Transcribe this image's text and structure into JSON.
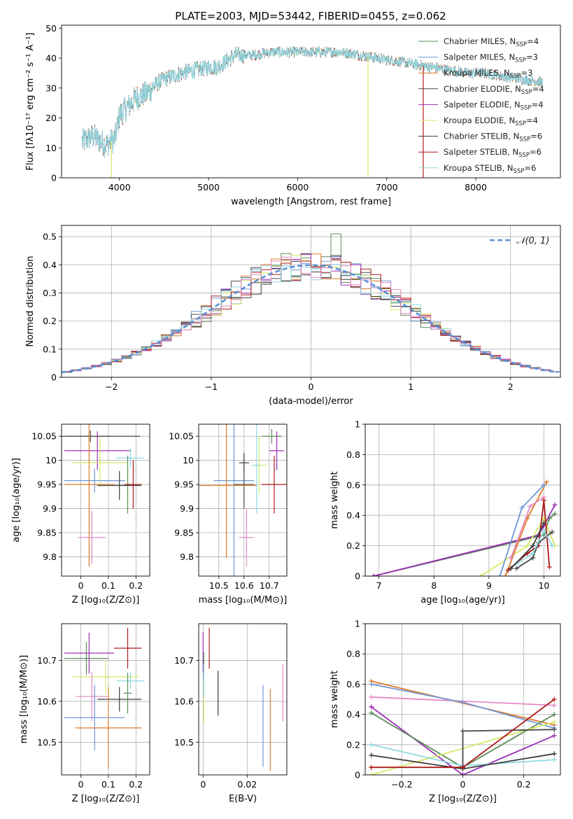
{
  "colors": {
    "palette": [
      "#5b8c5a",
      "#6f97d8",
      "#e07b28",
      "#4a4a4a",
      "#9b30b5",
      "#d4ea6a",
      "#3c3c3c",
      "#b01a1a",
      "#8fd8df",
      "#e58bc4"
    ],
    "gaussian": "#5b8fd8",
    "grid": "#b0b0b0"
  },
  "chart_data": [
    {
      "id": "spectrum",
      "type": "line",
      "title": "PLATE=2003, MJD=53442, FIBERID=0455, z=0.062",
      "xlabel": "wavelength [Angstrom, rest frame]",
      "ylabel": "Flux [fλ10⁻¹⁷ erg cm⁻² s⁻¹ A⁻¹]",
      "xlim": [
        3350,
        8950
      ],
      "ylim": [
        0,
        51
      ],
      "xticks": [
        4000,
        5000,
        6000,
        7000,
        8000
      ],
      "yticks": [
        0,
        10,
        20,
        30,
        40,
        50
      ],
      "grid": false,
      "legend": "top-right",
      "continuum": [
        [
          3580,
          12
        ],
        [
          3700,
          14
        ],
        [
          3850,
          11
        ],
        [
          3950,
          13
        ],
        [
          4000,
          21
        ],
        [
          4100,
          24
        ],
        [
          4200,
          27
        ],
        [
          4300,
          28
        ],
        [
          4400,
          31
        ],
        [
          4500,
          33
        ],
        [
          4700,
          35
        ],
        [
          4850,
          36
        ],
        [
          5000,
          37
        ],
        [
          5100,
          37
        ],
        [
          5200,
          39
        ],
        [
          5300,
          41
        ],
        [
          5500,
          41
        ],
        [
          5700,
          42
        ],
        [
          5900,
          42
        ],
        [
          6100,
          42
        ],
        [
          6300,
          42
        ],
        [
          6500,
          42
        ],
        [
          6700,
          41
        ],
        [
          6900,
          40
        ],
        [
          7100,
          39
        ],
        [
          7300,
          38
        ],
        [
          7500,
          37
        ],
        [
          7700,
          36
        ],
        [
          7900,
          35
        ],
        [
          8100,
          35
        ],
        [
          8300,
          34
        ],
        [
          8500,
          33
        ],
        [
          8750,
          32
        ]
      ],
      "dropouts": [
        [
          3910,
          5
        ],
        [
          6790,
          3
        ],
        [
          7410,
          7
        ]
      ],
      "series": [
        {
          "name": "Chabrier MILES, N_SSP=4"
        },
        {
          "name": "Salpeter MILES, N_SSP=3"
        },
        {
          "name": "Kroupa MILES, N_SSP=3"
        },
        {
          "name": "Chabrier ELODIE, N_SSP=4"
        },
        {
          "name": "Salpeter ELODIE, N_SSP=4"
        },
        {
          "name": "Kroupa ELODIE, N_SSP=4"
        },
        {
          "name": "Chabrier STELIB, N_SSP=6"
        },
        {
          "name": "Salpeter STELIB, N_SSP=6"
        },
        {
          "name": "Kroupa STELIB, N_SSP=6"
        }
      ],
      "legend_entries": [
        {
          "model": "Chabrier MILES, N",
          "sub": "SSP",
          "val": "=4"
        },
        {
          "model": "Salpeter MILES, N",
          "sub": "SSP",
          "val": "=3"
        },
        {
          "model": "Kroupa MILES, N",
          "sub": "SSP",
          "val": "=3"
        },
        {
          "model": "Chabrier ELODIE, N",
          "sub": "SSP",
          "val": "=4"
        },
        {
          "model": "Salpeter ELODIE, N",
          "sub": "SSP",
          "val": "=4"
        },
        {
          "model": "Kroupa ELODIE, N",
          "sub": "SSP",
          "val": "=4"
        },
        {
          "model": "Chabrier STELIB, N",
          "sub": "SSP",
          "val": "=6"
        },
        {
          "model": "Salpeter STELIB, N",
          "sub": "SSP",
          "val": "=6"
        },
        {
          "model": "Kroupa STELIB, N",
          "sub": "SSP",
          "val": "=6"
        }
      ]
    },
    {
      "id": "residuals",
      "type": "histogram",
      "xlabel": "(data-model)/error",
      "ylabel": "Normed distribution",
      "xlim": [
        -2.5,
        2.5
      ],
      "ylim": [
        0,
        0.54
      ],
      "xticks": [
        -2,
        -1,
        0,
        1,
        2
      ],
      "yticks": [
        0,
        0.1,
        0.2,
        0.3,
        0.4,
        0.5
      ],
      "bin_width": 0.1,
      "grid": true,
      "legend": "top-right",
      "reference": {
        "label": "𝒩(0, 1)",
        "mean": 0,
        "sigma": 1
      }
    },
    {
      "id": "age-vs-Z",
      "type": "errorbar",
      "xlabel": "Z [log₁₀(Z/Z⊙)]",
      "ylabel": "age  [log₁₀(age/yr)]",
      "xlim": [
        -0.07,
        0.25
      ],
      "ylim": [
        9.76,
        10.075
      ],
      "xticks": [
        0.0,
        0.1,
        0.2
      ],
      "yticks": [
        9.8,
        9.85,
        9.9,
        9.95,
        10.0,
        10.05
      ],
      "grid": true,
      "points": [
        {
          "x": 0.03,
          "xerr": 0.08,
          "y": 10.05,
          "yerr": 0.01,
          "c": 0
        },
        {
          "x": 0.035,
          "xerr": 0.18,
          "y": 10.05,
          "yerr": 0.012,
          "c": 3
        },
        {
          "x": 0.06,
          "xerr": 0.12,
          "y": 10.02,
          "yerr": 0.04,
          "c": 4
        },
        {
          "x": 0.07,
          "xerr": 0.1,
          "y": 9.995,
          "yerr": 0.05,
          "c": 5
        },
        {
          "x": 0.18,
          "xerr": 0.05,
          "y": 10.005,
          "yerr": 0.02,
          "c": 8
        },
        {
          "x": 0.17,
          "xerr": 0.015,
          "y": 9.95,
          "yerr": 0.06,
          "c": 0
        },
        {
          "x": 0.05,
          "xerr": 0.11,
          "y": 9.958,
          "yerr": 0.025,
          "c": 1
        },
        {
          "x": 0.03,
          "xerr": 0.09,
          "y": 9.95,
          "yerr": 0.17,
          "c": 2
        },
        {
          "x": 0.14,
          "xerr": 0.08,
          "y": 9.948,
          "yerr": 0.03,
          "c": 6
        },
        {
          "x": 0.19,
          "xerr": 0.03,
          "y": 9.95,
          "yerr": 0.05,
          "c": 7
        },
        {
          "x": 0.04,
          "xerr": 0.05,
          "y": 9.84,
          "yerr": 0.055,
          "c": 9
        }
      ]
    },
    {
      "id": "age-vs-mass",
      "type": "errorbar",
      "xlabel": "mass [log₁₀(M/M⊙)]",
      "ylabel": "",
      "xlim": [
        10.42,
        10.77
      ],
      "ylim": [
        9.76,
        10.075
      ],
      "xticks": [
        10.5,
        10.6,
        10.7
      ],
      "yticks": [
        9.8,
        9.85,
        9.9,
        9.95,
        10.0,
        10.05
      ],
      "grid": true,
      "points": [
        {
          "x": 10.71,
          "xerr": 0.04,
          "y": 10.05,
          "yerr": 0.015,
          "c": 0
        },
        {
          "x": 10.73,
          "xerr": 0.03,
          "y": 10.02,
          "yerr": 0.04,
          "c": 4
        },
        {
          "x": 10.66,
          "xerr": 0.03,
          "y": 9.99,
          "yerr": 0.06,
          "c": 5
        },
        {
          "x": 10.6,
          "xerr": 0.02,
          "y": 9.995,
          "yerr": 0.02,
          "c": 6
        },
        {
          "x": 10.56,
          "xerr": 0.08,
          "y": 9.958,
          "yerr": 0.2,
          "c": 1
        },
        {
          "x": 10.6,
          "xerr": 0.04,
          "y": 9.95,
          "yerr": 0.05,
          "c": 3
        },
        {
          "x": 10.53,
          "xerr": 0.12,
          "y": 9.948,
          "yerr": 0.15,
          "c": 2
        },
        {
          "x": 10.72,
          "xerr": 0.05,
          "y": 9.95,
          "yerr": 0.06,
          "c": 7
        },
        {
          "x": 10.65,
          "xerr": 0.015,
          "y": 9.99,
          "yerr": 0.1,
          "c": 8
        },
        {
          "x": 10.61,
          "xerr": 0.03,
          "y": 9.84,
          "yerr": 0.06,
          "c": 9
        }
      ]
    },
    {
      "id": "weight-vs-age",
      "type": "line",
      "xlabel": "age  [log₁₀(age/yr)]",
      "ylabel": "mass weight",
      "xlim": [
        6.75,
        10.3
      ],
      "ylim": [
        0,
        1
      ],
      "xticks": [
        7,
        8,
        9,
        10
      ],
      "yticks": [
        0,
        0.2,
        0.4,
        0.6,
        0.8,
        1.0
      ],
      "grid": true,
      "series": [
        {
          "c": 0,
          "x": [
            6.9,
            10.0,
            10.1,
            10.2
          ],
          "y": [
            0.0,
            0.27,
            0.38,
            0.41
          ]
        },
        {
          "c": 4,
          "x": [
            6.9,
            9.9,
            10.0,
            10.2
          ],
          "y": [
            0.0,
            0.27,
            0.33,
            0.47
          ]
        },
        {
          "c": 5,
          "x": [
            8.85,
            9.7,
            10.0,
            10.2
          ],
          "y": [
            0.0,
            0.2,
            0.38,
            0.2
          ]
        },
        {
          "c": 2,
          "x": [
            9.3,
            9.7,
            10.05
          ],
          "y": [
            0.0,
            0.38,
            0.62
          ]
        },
        {
          "c": 1,
          "x": [
            9.2,
            9.6,
            10.0
          ],
          "y": [
            0.0,
            0.45,
            0.6
          ]
        },
        {
          "c": 9,
          "x": [
            9.4,
            9.75,
            10.0
          ],
          "y": [
            0.12,
            0.46,
            0.52
          ]
        },
        {
          "c": 7,
          "x": [
            9.35,
            9.7,
            9.9,
            10.0,
            10.1
          ],
          "y": [
            0.04,
            0.15,
            0.2,
            0.5,
            0.06
          ]
        },
        {
          "c": 3,
          "x": [
            9.5,
            9.8,
            9.9,
            10.15
          ],
          "y": [
            0.05,
            0.12,
            0.22,
            0.29
          ]
        },
        {
          "c": 8,
          "x": [
            9.5,
            9.8,
            10.0,
            10.15
          ],
          "y": [
            0.08,
            0.15,
            0.3,
            0.2
          ]
        },
        {
          "c": 6,
          "x": [
            9.4,
            9.8,
            10.0
          ],
          "y": [
            0.05,
            0.2,
            0.35
          ]
        }
      ]
    },
    {
      "id": "mass-vs-Z",
      "type": "errorbar",
      "xlabel": "Z [log₁₀(Z/Z⊙)]",
      "ylabel": "mass [log₁₀(M/M⊙)]",
      "xlim": [
        -0.07,
        0.25
      ],
      "ylim": [
        10.42,
        10.79
      ],
      "xticks": [
        0.0,
        0.1,
        0.2
      ],
      "yticks": [
        10.5,
        10.6,
        10.7
      ],
      "grid": true,
      "points": [
        {
          "x": 0.17,
          "xerr": 0.05,
          "y": 10.73,
          "yerr": 0.05,
          "c": 7
        },
        {
          "x": 0.03,
          "xerr": 0.09,
          "y": 10.718,
          "yerr": 0.05,
          "c": 4
        },
        {
          "x": 0.02,
          "xerr": 0.08,
          "y": 10.705,
          "yerr": 0.04,
          "c": 0
        },
        {
          "x": 0.09,
          "xerr": 0.12,
          "y": 10.66,
          "yerr": 0.04,
          "c": 5
        },
        {
          "x": 0.18,
          "xerr": 0.05,
          "y": 10.65,
          "yerr": 0.02,
          "c": 8
        },
        {
          "x": 0.04,
          "xerr": 0.06,
          "y": 10.612,
          "yerr": 0.06,
          "c": 9
        },
        {
          "x": 0.14,
          "xerr": 0.08,
          "y": 10.605,
          "yerr": 0.03,
          "c": 6
        },
        {
          "x": 0.17,
          "xerr": 0.015,
          "y": 10.62,
          "yerr": 0.05,
          "c": 0
        },
        {
          "x": 0.05,
          "xerr": 0.11,
          "y": 10.56,
          "yerr": 0.08,
          "c": 1
        },
        {
          "x": 0.1,
          "xerr": 0.12,
          "y": 10.535,
          "yerr": 0.1,
          "c": 2
        }
      ]
    },
    {
      "id": "mass-vs-EBV",
      "type": "errorbar",
      "xlabel": "E(B-V)",
      "ylabel": "",
      "xlim": [
        -0.002,
        0.038
      ],
      "ylim": [
        10.42,
        10.79
      ],
      "xticks": [
        0.0,
        0.02
      ],
      "yticks": [
        10.5,
        10.6,
        10.7
      ],
      "grid": true,
      "points": [
        {
          "x": 0.0,
          "y": 10.72,
          "yerr": 0.05,
          "c": 4
        },
        {
          "x": 0.0003,
          "y": 10.68,
          "yerr": 0.04,
          "c": 0
        },
        {
          "x": 0.0003,
          "y": 10.6,
          "yerr": 0.05,
          "c": 5
        },
        {
          "x": 0.0003,
          "y": 10.65,
          "yerr": 0.04,
          "c": 8
        },
        {
          "x": 0.0028,
          "y": 10.73,
          "yerr": 0.05,
          "c": 7
        },
        {
          "x": 0.0068,
          "y": 10.62,
          "yerr": 0.055,
          "c": 6
        },
        {
          "x": 0.0272,
          "y": 10.54,
          "yerr": 0.1,
          "c": 1
        },
        {
          "x": 0.0305,
          "y": 10.53,
          "yerr": 0.1,
          "c": 2
        },
        {
          "x": 0.0362,
          "y": 10.62,
          "yerr": 0.07,
          "c": 9
        }
      ]
    },
    {
      "id": "weight-vs-Z",
      "type": "line",
      "xlabel": "Z [log₁₀(Z/Z⊙)]",
      "ylabel": "mass weight",
      "xlim": [
        -0.32,
        0.32
      ],
      "ylim": [
        0,
        1
      ],
      "xticks": [
        -0.2,
        0.0,
        0.2
      ],
      "yticks": [
        0,
        0.2,
        0.4,
        0.6,
        0.8,
        1.0
      ],
      "grid": true,
      "series": [
        {
          "c": 2,
          "x": [
            -0.3,
            0.3
          ],
          "y": [
            0.62,
            0.33
          ]
        },
        {
          "c": 9,
          "x": [
            -0.3,
            0.3
          ],
          "y": [
            0.515,
            0.46
          ]
        },
        {
          "c": 1,
          "x": [
            -0.3,
            0.0,
            0.3
          ],
          "y": [
            0.6,
            0.48,
            0.31
          ]
        },
        {
          "c": 4,
          "x": [
            -0.3,
            0.0,
            0.3
          ],
          "y": [
            0.45,
            0.0,
            0.26
          ]
        },
        {
          "c": 0,
          "x": [
            -0.3,
            0.0,
            0.3
          ],
          "y": [
            0.41,
            0.05,
            0.4
          ]
        },
        {
          "c": 5,
          "x": [
            -0.3,
            0.3
          ],
          "y": [
            0.0,
            0.35
          ]
        },
        {
          "c": 8,
          "x": [
            -0.3,
            0.0,
            0.3
          ],
          "y": [
            0.2,
            0.06,
            0.1
          ]
        },
        {
          "c": 6,
          "x": [
            -0.3,
            0.0,
            0.3
          ],
          "y": [
            0.13,
            0.04,
            0.14
          ]
        },
        {
          "c": 3,
          "x": [
            0.0,
            0.0,
            0.3
          ],
          "y": [
            0.05,
            0.29,
            0.3
          ]
        },
        {
          "c": 7,
          "x": [
            -0.3,
            0.0,
            0.3
          ],
          "y": [
            0.05,
            0.05,
            0.5
          ]
        }
      ]
    }
  ]
}
